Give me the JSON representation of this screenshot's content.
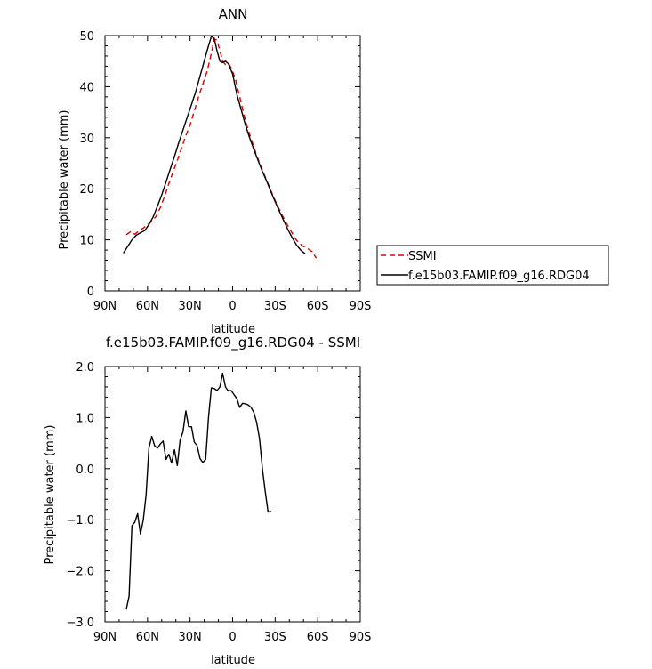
{
  "chart_data": [
    {
      "type": "line",
      "title": "ANN",
      "xlabel": "latitude",
      "ylabel": "Precipitable water (mm)",
      "xlim": [
        90,
        -90
      ],
      "ylim": [
        0,
        50
      ],
      "x_ticks": [
        {
          "value": 90,
          "label": "90N"
        },
        {
          "value": 60,
          "label": "60N"
        },
        {
          "value": 30,
          "label": "30N"
        },
        {
          "value": 0,
          "label": "0"
        },
        {
          "value": -30,
          "label": "30S"
        },
        {
          "value": -60,
          "label": "60S"
        },
        {
          "value": -90,
          "label": "90S"
        }
      ],
      "y_ticks": [
        {
          "value": 0,
          "label": "0"
        },
        {
          "value": 10,
          "label": "10"
        },
        {
          "value": 20,
          "label": "20"
        },
        {
          "value": 30,
          "label": "30"
        },
        {
          "value": 40,
          "label": "40"
        },
        {
          "value": 50,
          "label": "50"
        }
      ],
      "legend_position": "right",
      "series": [
        {
          "name": "SSMI",
          "color": "#dd0000",
          "dash": "dashed",
          "points": [
            [
              75,
              11
            ],
            [
              72,
              11.6
            ],
            [
              69,
              11.1
            ],
            [
              66,
              11.8
            ],
            [
              63,
              12.3
            ],
            [
              60,
              13.0
            ],
            [
              57,
              13.6
            ],
            [
              54,
              14.6
            ],
            [
              51,
              16.3
            ],
            [
              48,
              18.5
            ],
            [
              45,
              21.0
            ],
            [
              42,
              23.3
            ],
            [
              39,
              25.5
            ],
            [
              36,
              28.0
            ],
            [
              33,
              30.4
            ],
            [
              30,
              32.5
            ],
            [
              27,
              35.2
            ],
            [
              24,
              38.0
            ],
            [
              21,
              40.5
            ],
            [
              18,
              43.0
            ],
            [
              15,
              46.5
            ],
            [
              13,
              49.3
            ],
            [
              11,
              49.1
            ],
            [
              9,
              47.0
            ],
            [
              7,
              45.0
            ],
            [
              5,
              44.3
            ],
            [
              3,
              44.6
            ],
            [
              1,
              43.7
            ],
            [
              -2,
              41.5
            ],
            [
              -5,
              38.0
            ],
            [
              -8,
              34.5
            ],
            [
              -11,
              31.5
            ],
            [
              -14,
              29.0
            ],
            [
              -17,
              26.5
            ],
            [
              -20,
              24.3
            ],
            [
              -23,
              22.3
            ],
            [
              -26,
              20.3
            ],
            [
              -29,
              18.3
            ],
            [
              -32,
              16.5
            ],
            [
              -35,
              14.8
            ],
            [
              -38,
              13.2
            ],
            [
              -41,
              11.8
            ],
            [
              -44,
              10.3
            ],
            [
              -47,
              9.3
            ],
            [
              -50,
              8.7
            ],
            [
              -53,
              8.3
            ],
            [
              -56,
              7.7
            ],
            [
              -59,
              6.4
            ]
          ]
        },
        {
          "name": "f.e15b03.FAMIP.f09_g16.RDG04",
          "color": "#000000",
          "dash": "solid",
          "points": [
            [
              77,
              7.4
            ],
            [
              74,
              8.7
            ],
            [
              71,
              10.0
            ],
            [
              68,
              10.9
            ],
            [
              65,
              11.4
            ],
            [
              62,
              11.8
            ],
            [
              59,
              13.0
            ],
            [
              56,
              14.5
            ],
            [
              53,
              16.6
            ],
            [
              50,
              18.8
            ],
            [
              47,
              21.3
            ],
            [
              44,
              23.8
            ],
            [
              41,
              26.3
            ],
            [
              38,
              29.0
            ],
            [
              35,
              31.5
            ],
            [
              32,
              34.0
            ],
            [
              29,
              36.5
            ],
            [
              26,
              39.0
            ],
            [
              23,
              42.0
            ],
            [
              20,
              45.0
            ],
            [
              17,
              48.0
            ],
            [
              15,
              49.8
            ],
            [
              13,
              49.5
            ],
            [
              11,
              47.0
            ],
            [
              9,
              45.0
            ],
            [
              7,
              44.7
            ],
            [
              5,
              45.0
            ],
            [
              3,
              44.5
            ],
            [
              0,
              42.5
            ],
            [
              -3,
              38.5
            ],
            [
              -6,
              35.5
            ],
            [
              -9,
              32.5
            ],
            [
              -12,
              30.0
            ],
            [
              -15,
              27.7
            ],
            [
              -18,
              25.5
            ],
            [
              -21,
              23.4
            ],
            [
              -24,
              21.5
            ],
            [
              -27,
              19.4
            ],
            [
              -30,
              17.5
            ],
            [
              -33,
              15.6
            ],
            [
              -36,
              13.8
            ],
            [
              -39,
              12.0
            ],
            [
              -42,
              10.4
            ],
            [
              -45,
              9.0
            ],
            [
              -48,
              8.0
            ],
            [
              -51,
              7.3
            ]
          ]
        }
      ]
    },
    {
      "type": "line",
      "title": "f.e15b03.FAMIP.f09_g16.RDG04 - SSMI",
      "xlabel": "latitude",
      "ylabel": "Precipitable water (mm)",
      "xlim": [
        90,
        -90
      ],
      "ylim": [
        -3,
        2
      ],
      "x_ticks": [
        {
          "value": 90,
          "label": "90N"
        },
        {
          "value": 60,
          "label": "60N"
        },
        {
          "value": 30,
          "label": "30N"
        },
        {
          "value": 0,
          "label": "0"
        },
        {
          "value": -30,
          "label": "30S"
        },
        {
          "value": -60,
          "label": "60S"
        },
        {
          "value": -90,
          "label": "90S"
        }
      ],
      "y_ticks": [
        {
          "value": -3,
          "label": "−3.0"
        },
        {
          "value": -2,
          "label": "−2.0"
        },
        {
          "value": -1,
          "label": "−1.0"
        },
        {
          "value": 0,
          "label": "0.0"
        },
        {
          "value": 1,
          "label": "1.0"
        },
        {
          "value": 2,
          "label": "2.0"
        }
      ],
      "series": [
        {
          "color": "#000000",
          "dash": "solid",
          "points": [
            [
              75,
              -2.76
            ],
            [
              73,
              -2.5
            ],
            [
              71,
              -1.12
            ],
            [
              69,
              -1.05
            ],
            [
              67,
              -0.88
            ],
            [
              65,
              -1.28
            ],
            [
              63,
              -1.0
            ],
            [
              61,
              -0.52
            ],
            [
              59,
              0.4
            ],
            [
              57,
              0.63
            ],
            [
              55,
              0.45
            ],
            [
              53,
              0.4
            ],
            [
              51,
              0.48
            ],
            [
              49,
              0.54
            ],
            [
              47,
              0.18
            ],
            [
              45,
              0.28
            ],
            [
              43,
              0.11
            ],
            [
              41,
              0.37
            ],
            [
              39,
              0.06
            ],
            [
              37,
              0.56
            ],
            [
              35,
              0.72
            ],
            [
              33,
              1.13
            ],
            [
              31,
              0.82
            ],
            [
              29,
              0.82
            ],
            [
              27,
              0.52
            ],
            [
              25,
              0.45
            ],
            [
              23,
              0.2
            ],
            [
              21,
              0.12
            ],
            [
              19,
              0.18
            ],
            [
              17,
              1.0
            ],
            [
              15,
              1.58
            ],
            [
              13,
              1.57
            ],
            [
              11,
              1.53
            ],
            [
              9,
              1.6
            ],
            [
              7,
              1.87
            ],
            [
              5,
              1.6
            ],
            [
              3,
              1.52
            ],
            [
              1,
              1.53
            ],
            [
              -1,
              1.45
            ],
            [
              -3,
              1.37
            ],
            [
              -5,
              1.2
            ],
            [
              -7,
              1.28
            ],
            [
              -9,
              1.27
            ],
            [
              -11,
              1.25
            ],
            [
              -13,
              1.2
            ],
            [
              -15,
              1.1
            ],
            [
              -17,
              0.9
            ],
            [
              -19,
              0.58
            ],
            [
              -21,
              0.0
            ],
            [
              -23,
              -0.45
            ],
            [
              -25,
              -0.85
            ],
            [
              -27,
              -0.83
            ]
          ]
        }
      ]
    }
  ]
}
